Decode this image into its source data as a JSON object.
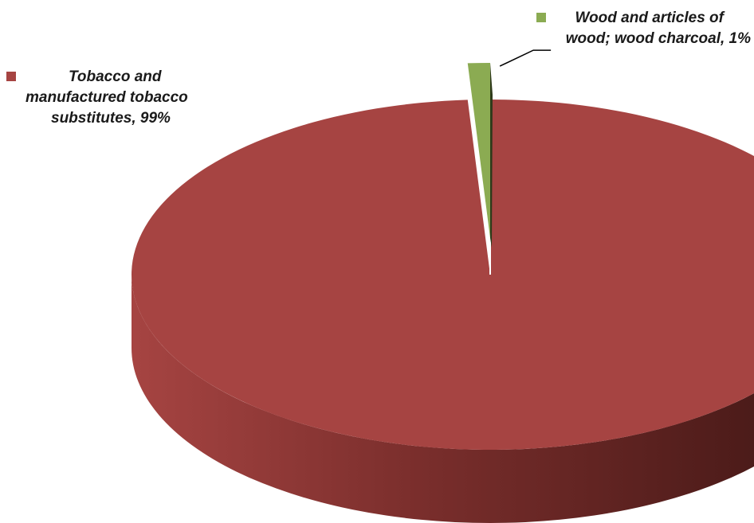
{
  "colors": {
    "background": "#ffffff",
    "tobacco": "#a64442",
    "tobacco_side_light": "#8d3836",
    "tobacco_side_dark": "#3f1614",
    "wood": "#8bab52",
    "wood_dark": "#2e3a1a",
    "leader_line": "#000000"
  },
  "chart_data": {
    "type": "pie",
    "style": "3d",
    "start_angle_deg": 0,
    "slices": [
      {
        "label": "Tobacco and manufactured tobacco substitutes",
        "value": 99,
        "display": "Tobacco and manufactured tobacco substitutes, 99%",
        "color": "#a64442"
      },
      {
        "label": "Wood and articles of wood; wood charcoal",
        "value": 1,
        "display": "Wood and articles of wood; wood charcoal, 1%",
        "color": "#8bab52"
      }
    ],
    "labels": {
      "tobacco": {
        "line1": "Tobacco and",
        "line2": "manufactured tobacco",
        "line3": "substitutes, 99%"
      },
      "wood": {
        "line1": "Wood and articles of",
        "line2": "wood; wood charcoal, 1%"
      }
    },
    "legend": "none",
    "data_labels": "outside-with-leader"
  }
}
